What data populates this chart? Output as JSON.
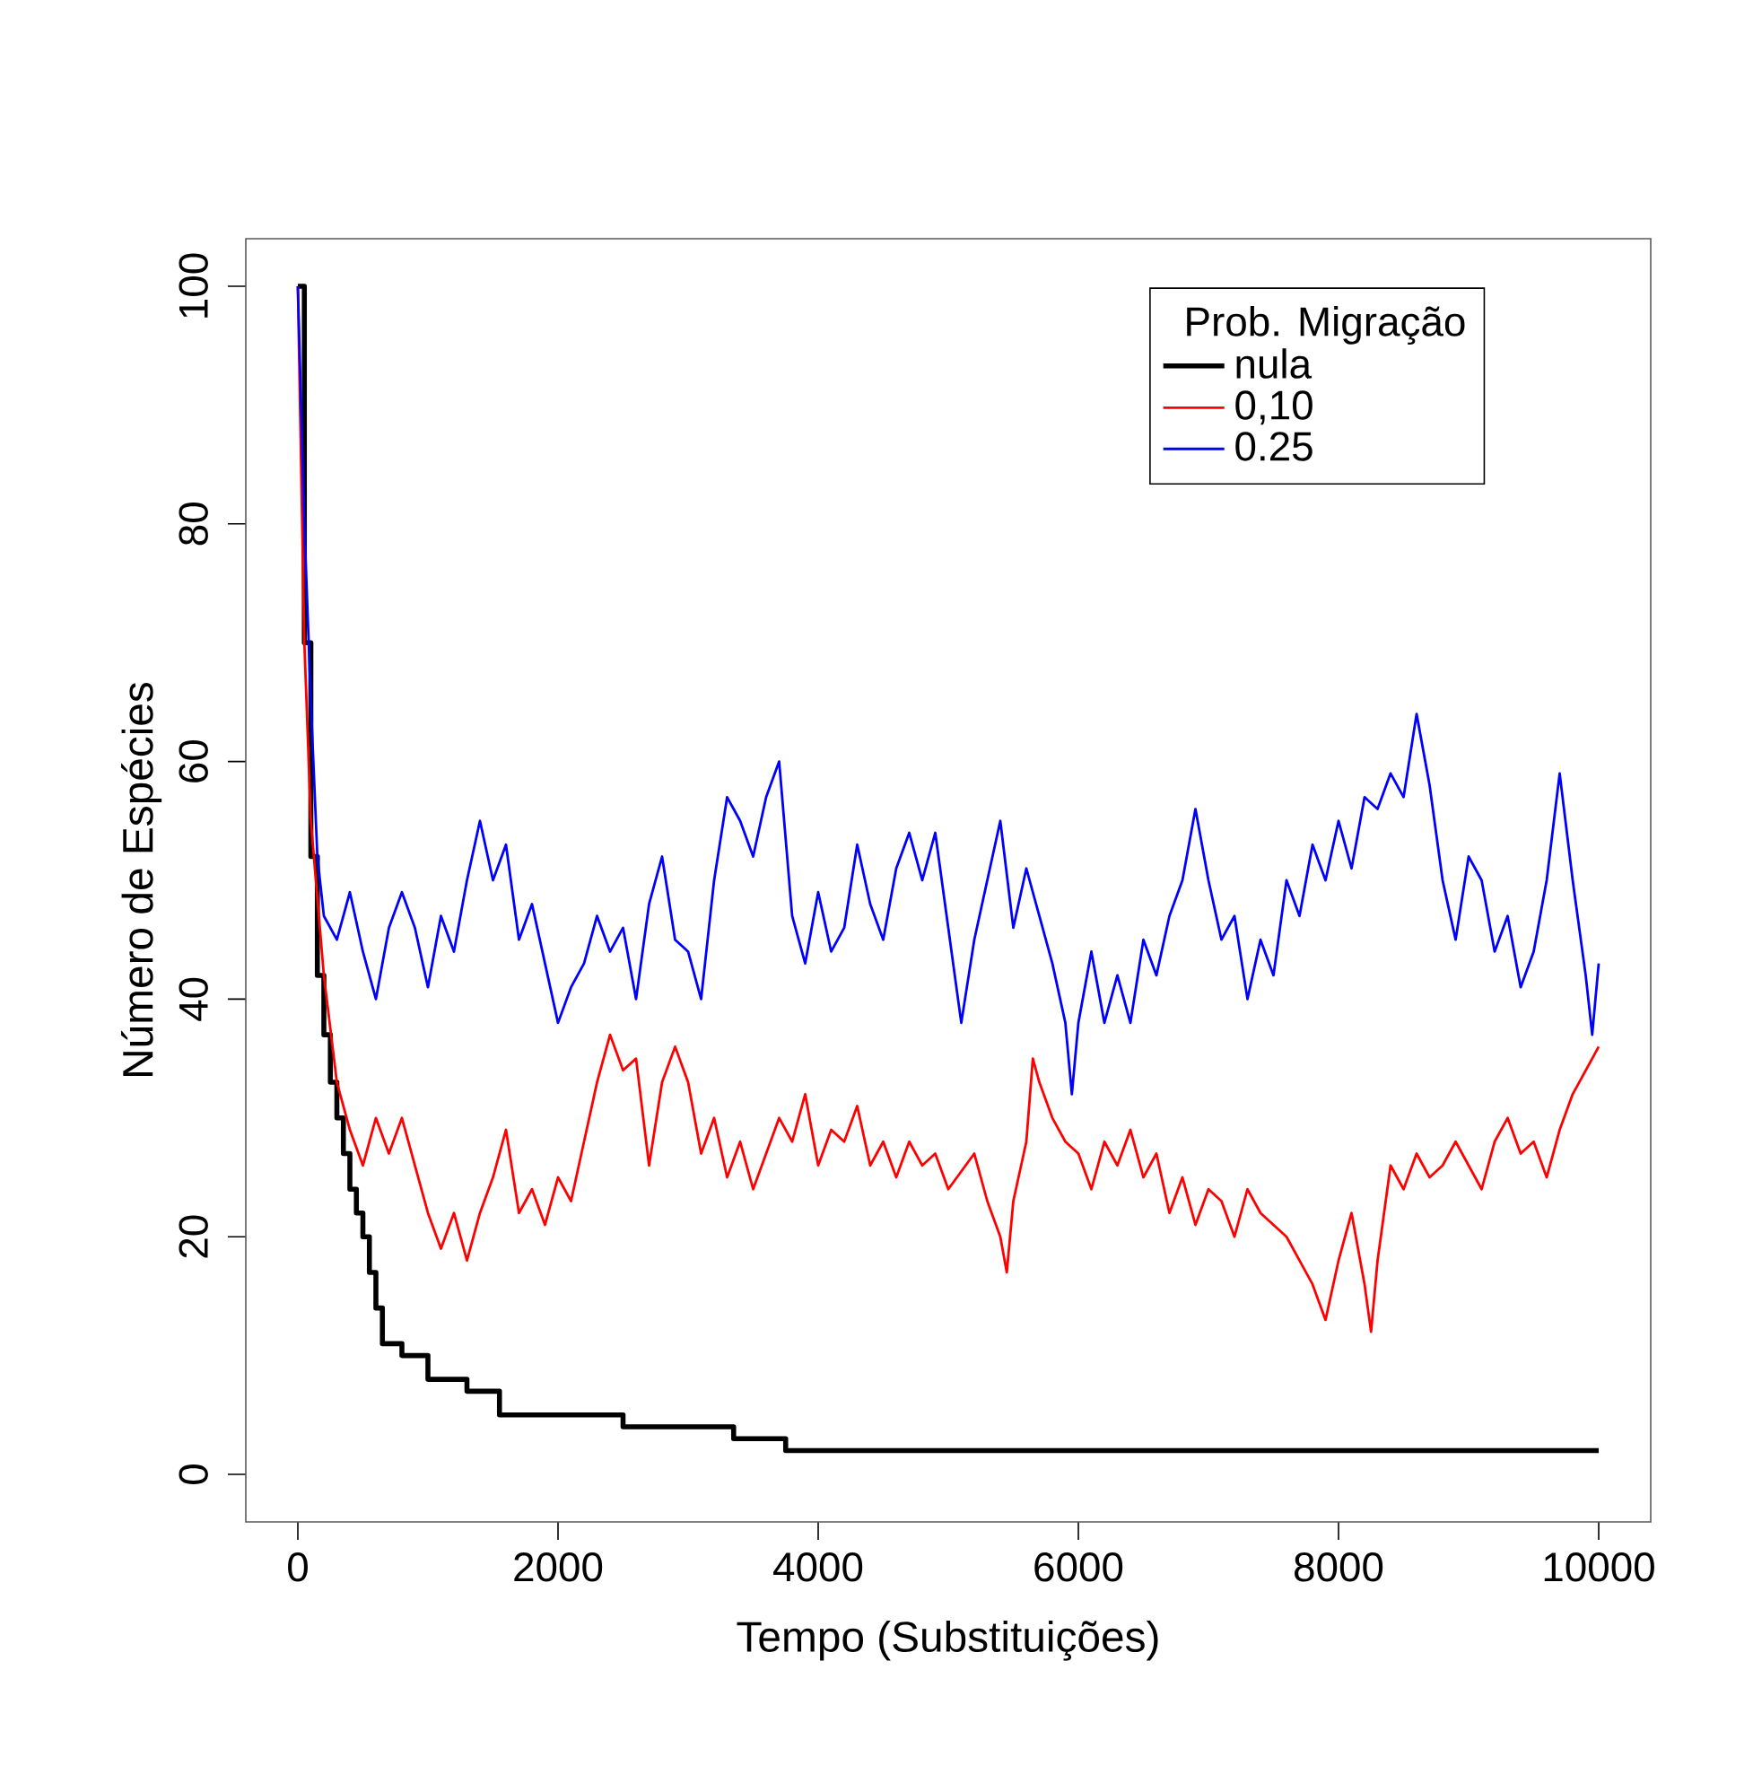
{
  "chart_data": {
    "type": "line",
    "xlabel": "Tempo (Substituições)",
    "ylabel": "Número de Espécies",
    "legend_title": "Prob. Migração",
    "legend": "top right",
    "xlim": [
      -400,
      10400
    ],
    "ylim": [
      -4,
      104
    ],
    "xticks": [
      0,
      2000,
      4000,
      6000,
      8000,
      10000
    ],
    "yticks": [
      0,
      20,
      40,
      60,
      80,
      100
    ],
    "series": [
      {
        "name": "nula",
        "type": "step",
        "color": "#000000",
        "x": [
          0,
          50,
          100,
          150,
          200,
          250,
          300,
          350,
          400,
          450,
          500,
          550,
          600,
          650,
          800,
          1000,
          1300,
          1550,
          2500,
          3350,
          3750,
          10000
        ],
        "values": [
          100,
          70,
          52,
          42,
          37,
          33,
          30,
          27,
          24,
          22,
          20,
          17,
          14,
          11,
          10,
          8,
          7,
          5,
          4,
          3,
          2,
          2
        ]
      },
      {
        "name": "0,10",
        "color": "#ff0000",
        "x": [
          0,
          50,
          100,
          200,
          300,
          400,
          500,
          600,
          700,
          800,
          900,
          1000,
          1100,
          1200,
          1300,
          1400,
          1500,
          1600,
          1700,
          1800,
          1900,
          2000,
          2100,
          2200,
          2300,
          2400,
          2500,
          2600,
          2700,
          2800,
          2900,
          3000,
          3100,
          3200,
          3300,
          3400,
          3500,
          3600,
          3700,
          3800,
          3900,
          4000,
          4100,
          4200,
          4300,
          4400,
          4500,
          4600,
          4700,
          4800,
          4900,
          5000,
          5200,
          5300,
          5400,
          5450,
          5500,
          5600,
          5650,
          5700,
          5800,
          5900,
          6000,
          6100,
          6200,
          6300,
          6400,
          6500,
          6600,
          6700,
          6800,
          6900,
          7000,
          7100,
          7200,
          7300,
          7400,
          7500,
          7600,
          7700,
          7800,
          7900,
          8000,
          8100,
          8200,
          8250,
          8300,
          8400,
          8500,
          8600,
          8700,
          8800,
          8900,
          9000,
          9100,
          9200,
          9300,
          9400,
          9500,
          9600,
          9700,
          9800,
          9900,
          10000
        ],
        "values": [
          100,
          70,
          55,
          42,
          33,
          29,
          26,
          30,
          27,
          30,
          26,
          22,
          19,
          22,
          18,
          22,
          25,
          29,
          22,
          24,
          21,
          25,
          23,
          28,
          33,
          37,
          34,
          35,
          26,
          33,
          36,
          33,
          27,
          30,
          25,
          28,
          24,
          27,
          30,
          28,
          32,
          26,
          29,
          28,
          31,
          26,
          28,
          25,
          28,
          26,
          27,
          24,
          27,
          23,
          20,
          17,
          23,
          28,
          35,
          33,
          30,
          28,
          27,
          24,
          28,
          26,
          29,
          25,
          27,
          22,
          25,
          21,
          24,
          23,
          20,
          24,
          22,
          21,
          20,
          18,
          16,
          13,
          18,
          22,
          16,
          12,
          18,
          26,
          24,
          27,
          25,
          26,
          28,
          26,
          24,
          28,
          30,
          27,
          28,
          25,
          29,
          32,
          34,
          36
        ]
      },
      {
        "name": "0.25",
        "color": "#0000ff",
        "x": [
          0,
          50,
          100,
          150,
          200,
          300,
          400,
          500,
          600,
          700,
          800,
          900,
          1000,
          1100,
          1200,
          1300,
          1400,
          1500,
          1600,
          1700,
          1800,
          1900,
          2000,
          2100,
          2200,
          2300,
          2400,
          2500,
          2600,
          2700,
          2800,
          2900,
          3000,
          3100,
          3200,
          3300,
          3400,
          3500,
          3600,
          3700,
          3800,
          3900,
          4000,
          4100,
          4200,
          4300,
          4400,
          4500,
          4600,
          4700,
          4800,
          4900,
          5000,
          5100,
          5200,
          5300,
          5400,
          5500,
          5600,
          5700,
          5800,
          5900,
          5950,
          6000,
          6100,
          6200,
          6300,
          6400,
          6500,
          6600,
          6700,
          6800,
          6900,
          7000,
          7100,
          7200,
          7300,
          7400,
          7500,
          7600,
          7700,
          7800,
          7900,
          8000,
          8100,
          8200,
          8300,
          8400,
          8500,
          8600,
          8700,
          8800,
          8900,
          9000,
          9100,
          9200,
          9300,
          9400,
          9500,
          9600,
          9700,
          9800,
          9900,
          9950,
          10000
        ],
        "values": [
          100,
          80,
          65,
          52,
          47,
          45,
          49,
          44,
          40,
          46,
          49,
          46,
          41,
          47,
          44,
          50,
          55,
          50,
          53,
          45,
          48,
          43,
          38,
          41,
          43,
          47,
          44,
          46,
          40,
          48,
          52,
          45,
          44,
          40,
          50,
          57,
          55,
          52,
          57,
          60,
          47,
          43,
          49,
          44,
          46,
          53,
          48,
          45,
          51,
          54,
          50,
          54,
          46,
          38,
          45,
          50,
          55,
          46,
          51,
          47,
          43,
          38,
          32,
          38,
          44,
          38,
          42,
          38,
          45,
          42,
          47,
          50,
          56,
          50,
          45,
          47,
          40,
          45,
          42,
          50,
          47,
          53,
          50,
          55,
          51,
          57,
          56,
          59,
          57,
          64,
          58,
          50,
          45,
          52,
          50,
          44,
          47,
          41,
          44,
          50,
          59,
          50,
          42,
          37,
          43
        ]
      }
    ]
  }
}
